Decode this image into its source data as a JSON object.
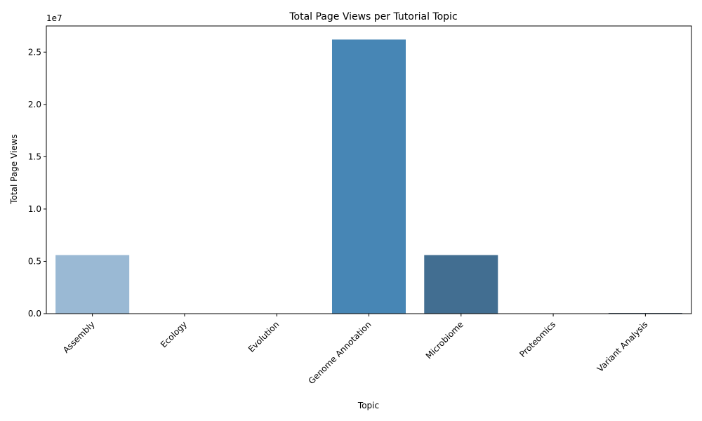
{
  "chart_data": {
    "type": "bar",
    "title": "Total Page Views per Tutorial Topic",
    "xlabel": "Topic",
    "ylabel": "Total Page Views",
    "scale_label": "1e7",
    "categories": [
      "Assembly",
      "Ecology",
      "Evolution",
      "Genome Annotation",
      "Microbiome",
      "Proteomics",
      "Variant Analysis"
    ],
    "values": [
      5600000,
      0,
      0,
      26200000,
      5600000,
      0,
      60000
    ],
    "colors": [
      "#9ab9d4",
      "#8eb6d6",
      "#6ea5cf",
      "#4786b5",
      "#426e91",
      "#2f5270",
      "#1f3a52"
    ],
    "ylim": [
      0,
      27500000
    ],
    "yticks": [
      0,
      5000000,
      10000000,
      15000000,
      20000000,
      25000000
    ],
    "ytick_labels": [
      "0.0",
      "0.5",
      "1.0",
      "1.5",
      "2.0",
      "2.5"
    ],
    "grid": false,
    "legend": "none"
  }
}
